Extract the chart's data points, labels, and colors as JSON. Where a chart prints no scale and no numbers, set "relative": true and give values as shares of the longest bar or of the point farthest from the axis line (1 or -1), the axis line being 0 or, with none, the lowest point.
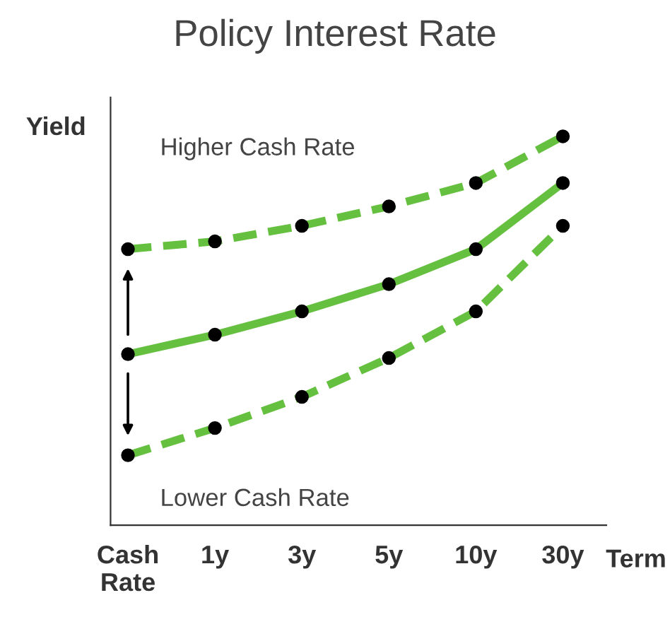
{
  "chart_data": {
    "type": "line",
    "title": "Policy Interest Rate",
    "xlabel": "Term",
    "ylabel": "Yield",
    "relative": true,
    "categories": [
      "Cash\nRate",
      "1y",
      "3y",
      "5y",
      "10y",
      "30y"
    ],
    "series": [
      {
        "color": "#66c040",
        "line_style": "dashed",
        "values": [
          0.71,
          0.73,
          0.77,
          0.82,
          0.88,
          1
        ]
      },
      {
        "color": "#66c040",
        "line_style": "solid",
        "values": [
          0.44,
          0.49,
          0.55,
          0.62,
          0.71,
          0.88
        ]
      },
      {
        "color": "#66c040",
        "line_style": "dashed",
        "values": [
          0.18,
          0.25,
          0.33,
          0.43,
          0.55,
          0.77
        ]
      }
    ],
    "marker": "circle",
    "grid": false,
    "legend": false,
    "annotations": [
      "Higher Cash Rate",
      "Lower Cash Rate"
    ]
  }
}
